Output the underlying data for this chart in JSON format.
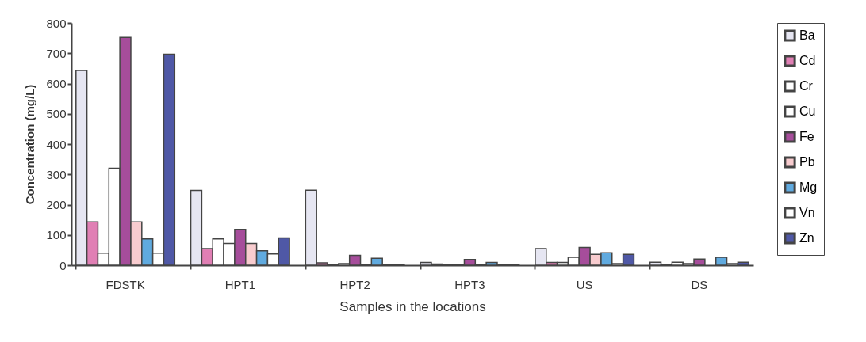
{
  "chart_data": {
    "type": "bar",
    "xlabel": "Samples in the locations",
    "ylabel": "Concentration (mg/L)",
    "categories": [
      "FDSTK",
      "HPT1",
      "HPT2",
      "HPT3",
      "US",
      "DS"
    ],
    "ylim": [
      0,
      800
    ],
    "yticks": [
      0,
      100,
      200,
      300,
      400,
      500,
      600,
      700,
      800
    ],
    "grid": false,
    "legend": "right",
    "series": [
      {
        "name": "Ba",
        "color": "#e6e6f2",
        "values": [
          643,
          247,
          248,
          9,
          55,
          10
        ]
      },
      {
        "name": "Cd",
        "color": "#e07fb4",
        "values": [
          143,
          55,
          8,
          4,
          9,
          1
        ]
      },
      {
        "name": "Cr",
        "color": "#ffffff",
        "values": [
          40,
          87,
          2,
          2,
          9,
          10
        ]
      },
      {
        "name": "Cu",
        "color": "#ffffff",
        "values": [
          320,
          72,
          5,
          2,
          26,
          5
        ]
      },
      {
        "name": "Fe",
        "color": "#a64d9b",
        "values": [
          752,
          118,
          33,
          19,
          59,
          20
        ]
      },
      {
        "name": "Pb",
        "color": "#f8cccf",
        "values": [
          143,
          72,
          1,
          1,
          36,
          null
        ]
      },
      {
        "name": "Mg",
        "color": "#60aadf",
        "values": [
          87,
          48,
          23,
          9,
          41,
          26
        ]
      },
      {
        "name": "Vn",
        "color": "#ffffff",
        "values": [
          40,
          37,
          2,
          2,
          5,
          5
        ]
      },
      {
        "name": "Zn",
        "color": "#4f58a6",
        "values": [
          697,
          90,
          2,
          1,
          36,
          10
        ]
      }
    ]
  }
}
